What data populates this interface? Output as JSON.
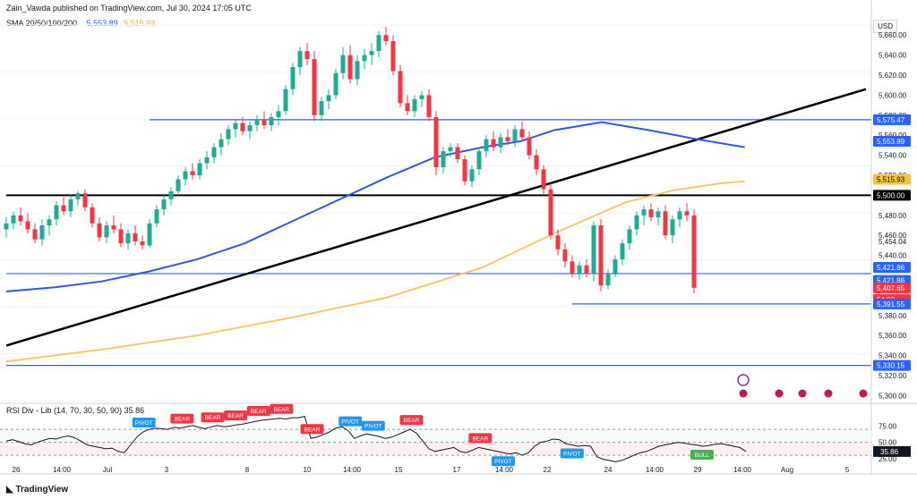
{
  "header": {
    "publisher": "Zain_Vawda published on TradingView.com, Jul 30, 2024 17:05 UTC",
    "sma_label": "SMA 20/50/100/200",
    "sma_value_1": "5,553.89",
    "sma_value_2": "5,515.93",
    "currency": "USD",
    "brand": "TradingView"
  },
  "price_axis": {
    "ticks": [
      "5,660.00",
      "5,640.00",
      "5,620.00",
      "5,600.00",
      "5,580.00",
      "5,560.00",
      "5,540.00",
      "5,520.00",
      "5,480.00",
      "5,460.00",
      "5,454.04",
      "5,440.00",
      "5,380.00",
      "5,360.00",
      "5,340.00",
      "5,320.00",
      "5,300.00"
    ],
    "tick_values": [
      5660,
      5640,
      5620,
      5600,
      5580,
      5560,
      5540,
      5520,
      5480,
      5460,
      5454.04,
      5440,
      5380,
      5360,
      5340,
      5320,
      5300
    ]
  },
  "price_badges": [
    {
      "label": "5,575.47",
      "value": 5575.47,
      "color": "#2962ff",
      "filled": true
    },
    {
      "label": "5,553.89",
      "value": 5553.89,
      "color": "#2962ff",
      "filled": true
    },
    {
      "label": "5,515.93",
      "value": 5515.93,
      "color": "#f5c542",
      "filled": true
    },
    {
      "label": "5,500.00",
      "value": 5500,
      "color": "#000000",
      "filled": true
    },
    {
      "label": "5,421.86",
      "value": 5428,
      "color": "#2962ff",
      "filled": true
    },
    {
      "label": "5,421.86",
      "value": 5415,
      "color": "#2962ff",
      "filled": true
    },
    {
      "label": "5,407.65",
      "value": 5407.65,
      "color": "#f23645",
      "filled": true
    },
    {
      "label": "54:03",
      "value": 5396,
      "color": "#f23645",
      "filled": true
    },
    {
      "label": "5,391.55",
      "value": 5391.55,
      "color": "#2962ff",
      "filled": true
    },
    {
      "label": "5,330.15",
      "value": 5330.15,
      "color": "#2962ff",
      "filled": true
    }
  ],
  "rsi": {
    "label": "RSI Div - Lib (14, 70, 30, 50, 90)",
    "current": "35.86",
    "axis_ticks": [
      "75.00",
      "50.00",
      "25.00"
    ],
    "axis_values": [
      75,
      50,
      25
    ],
    "upper": 70,
    "lower": 30,
    "signals": [
      {
        "text": "PIVOT",
        "kind": "pivot",
        "index": 18
      },
      {
        "text": "BEAR",
        "kind": "bear",
        "index": 23
      },
      {
        "text": "BEAR",
        "kind": "bear",
        "index": 27
      },
      {
        "text": "BEAR",
        "kind": "bear",
        "index": 30
      },
      {
        "text": "BEAR",
        "kind": "bear",
        "index": 33
      },
      {
        "text": "BEAR",
        "kind": "bear",
        "index": 36
      },
      {
        "text": "BEAR",
        "kind": "bear",
        "index": 40
      },
      {
        "text": "PIVOT",
        "kind": "pivot",
        "index": 45
      },
      {
        "text": "PIVOT",
        "kind": "pivot",
        "index": 48
      },
      {
        "text": "BEAR",
        "kind": "bear",
        "index": 53
      },
      {
        "text": "BEAR",
        "kind": "bear",
        "index": 62
      },
      {
        "text": "PIVOT",
        "kind": "pivot",
        "index": 65
      },
      {
        "text": "PIVOT",
        "kind": "pivot",
        "index": 74
      },
      {
        "text": "BULL",
        "kind": "bull",
        "index": 91
      }
    ]
  },
  "time_axis": [
    "26",
    "14:00",
    "Jul",
    "3",
    "8",
    "10",
    "14:00",
    "15",
    "17",
    "14:00",
    "22",
    "24",
    "14:00",
    "29",
    "14:00",
    "Aug",
    "5"
  ],
  "chart_data": {
    "type": "candlestick",
    "y_range": [
      5295,
      5670
    ],
    "bar_count": 103,
    "horizontal_levels": [
      {
        "value": 5575.47,
        "color": "#2962ff",
        "from_bar": 20
      },
      {
        "value": 5500,
        "color": "#000000",
        "from_bar": 0
      },
      {
        "value": 5421.86,
        "color": "#2962ff",
        "from_bar": 0
      },
      {
        "value": 5391.55,
        "color": "#2962ff",
        "from_bar": 79
      },
      {
        "value": 5330.15,
        "color": "#2962ff",
        "from_bar": 0
      }
    ],
    "trendline": {
      "from": {
        "bar": 0,
        "price": 5350
      },
      "to": {
        "bar": 120,
        "price": 5606
      }
    },
    "candles": [
      [
        5466,
        5478,
        5458,
        5472
      ],
      [
        5472,
        5484,
        5466,
        5480
      ],
      [
        5480,
        5488,
        5470,
        5474
      ],
      [
        5474,
        5482,
        5462,
        5466
      ],
      [
        5466,
        5472,
        5452,
        5456
      ],
      [
        5456,
        5476,
        5450,
        5470
      ],
      [
        5470,
        5480,
        5460,
        5476
      ],
      [
        5476,
        5494,
        5470,
        5490
      ],
      [
        5490,
        5498,
        5480,
        5484
      ],
      [
        5484,
        5500,
        5478,
        5496
      ],
      [
        5496,
        5504,
        5490,
        5502
      ],
      [
        5502,
        5506,
        5484,
        5488
      ],
      [
        5488,
        5492,
        5468,
        5472
      ],
      [
        5472,
        5478,
        5454,
        5458
      ],
      [
        5458,
        5474,
        5452,
        5470
      ],
      [
        5470,
        5480,
        5462,
        5466
      ],
      [
        5466,
        5472,
        5448,
        5452
      ],
      [
        5452,
        5466,
        5446,
        5462
      ],
      [
        5462,
        5470,
        5450,
        5454
      ],
      [
        5454,
        5460,
        5446,
        5450
      ],
      [
        5450,
        5476,
        5448,
        5472
      ],
      [
        5472,
        5490,
        5468,
        5486
      ],
      [
        5486,
        5500,
        5480,
        5496
      ],
      [
        5496,
        5508,
        5490,
        5504
      ],
      [
        5504,
        5520,
        5500,
        5516
      ],
      [
        5516,
        5528,
        5510,
        5524
      ],
      [
        5524,
        5532,
        5516,
        5520
      ],
      [
        5520,
        5536,
        5516,
        5532
      ],
      [
        5532,
        5544,
        5526,
        5538
      ],
      [
        5538,
        5552,
        5532,
        5548
      ],
      [
        5548,
        5562,
        5540,
        5556
      ],
      [
        5556,
        5570,
        5550,
        5566
      ],
      [
        5566,
        5576,
        5558,
        5572
      ],
      [
        5572,
        5578,
        5560,
        5564
      ],
      [
        5564,
        5574,
        5556,
        5570
      ],
      [
        5570,
        5580,
        5564,
        5576
      ],
      [
        5576,
        5584,
        5566,
        5570
      ],
      [
        5570,
        5582,
        5564,
        5578
      ],
      [
        5578,
        5590,
        5570,
        5584
      ],
      [
        5584,
        5610,
        5580,
        5606
      ],
      [
        5606,
        5632,
        5600,
        5628
      ],
      [
        5628,
        5648,
        5620,
        5644
      ],
      [
        5644,
        5652,
        5630,
        5636
      ],
      [
        5636,
        5644,
        5574,
        5580
      ],
      [
        5580,
        5598,
        5574,
        5594
      ],
      [
        5594,
        5606,
        5586,
        5600
      ],
      [
        5600,
        5626,
        5596,
        5622
      ],
      [
        5622,
        5648,
        5616,
        5640
      ],
      [
        5640,
        5650,
        5612,
        5616
      ],
      [
        5616,
        5640,
        5610,
        5634
      ],
      [
        5634,
        5646,
        5626,
        5640
      ],
      [
        5640,
        5652,
        5630,
        5644
      ],
      [
        5644,
        5664,
        5638,
        5660
      ],
      [
        5660,
        5668,
        5650,
        5654
      ],
      [
        5654,
        5660,
        5620,
        5624
      ],
      [
        5624,
        5630,
        5588,
        5592
      ],
      [
        5592,
        5600,
        5580,
        5584
      ],
      [
        5584,
        5600,
        5578,
        5596
      ],
      [
        5596,
        5604,
        5588,
        5600
      ],
      [
        5600,
        5606,
        5574,
        5578
      ],
      [
        5578,
        5584,
        5520,
        5528
      ],
      [
        5528,
        5548,
        5522,
        5544
      ],
      [
        5544,
        5552,
        5538,
        5548
      ],
      [
        5548,
        5552,
        5532,
        5536
      ],
      [
        5536,
        5540,
        5510,
        5514
      ],
      [
        5514,
        5530,
        5508,
        5526
      ],
      [
        5526,
        5548,
        5520,
        5544
      ],
      [
        5544,
        5560,
        5538,
        5556
      ],
      [
        5556,
        5564,
        5544,
        5548
      ],
      [
        5548,
        5562,
        5542,
        5558
      ],
      [
        5558,
        5566,
        5550,
        5554
      ],
      [
        5554,
        5570,
        5548,
        5566
      ],
      [
        5566,
        5574,
        5554,
        5558
      ],
      [
        5558,
        5564,
        5536,
        5540
      ],
      [
        5540,
        5546,
        5520,
        5526
      ],
      [
        5526,
        5530,
        5500,
        5506
      ],
      [
        5506,
        5512,
        5456,
        5460
      ],
      [
        5460,
        5466,
        5440,
        5446
      ],
      [
        5446,
        5452,
        5428,
        5434
      ],
      [
        5434,
        5440,
        5418,
        5422
      ],
      [
        5422,
        5434,
        5416,
        5430
      ],
      [
        5430,
        5436,
        5418,
        5422
      ],
      [
        5422,
        5474,
        5414,
        5470
      ],
      [
        5470,
        5476,
        5404,
        5410
      ],
      [
        5410,
        5426,
        5406,
        5422
      ],
      [
        5422,
        5440,
        5418,
        5436
      ],
      [
        5436,
        5456,
        5430,
        5452
      ],
      [
        5452,
        5470,
        5446,
        5466
      ],
      [
        5466,
        5484,
        5460,
        5480
      ],
      [
        5480,
        5490,
        5470,
        5486
      ],
      [
        5486,
        5492,
        5474,
        5478
      ],
      [
        5478,
        5488,
        5470,
        5484
      ],
      [
        5484,
        5490,
        5456,
        5460
      ],
      [
        5460,
        5480,
        5452,
        5476
      ],
      [
        5476,
        5488,
        5468,
        5484
      ],
      [
        5484,
        5492,
        5474,
        5480
      ],
      [
        5480,
        5486,
        5402,
        5407.65
      ]
    ],
    "sma_blue": [
      [
        0,
        5404
      ],
      [
        10,
        5408
      ],
      [
        20,
        5414
      ],
      [
        30,
        5424
      ],
      [
        40,
        5436
      ],
      [
        50,
        5452
      ],
      [
        60,
        5474
      ],
      [
        70,
        5496
      ],
      [
        80,
        5518
      ],
      [
        90,
        5538
      ],
      [
        100,
        5548
      ],
      [
        108,
        5554
      ],
      [
        115,
        5565
      ],
      [
        125,
        5573
      ],
      [
        135,
        5565
      ],
      [
        145,
        5556
      ],
      [
        155,
        5548
      ]
    ],
    "sma_yellow": [
      [
        0,
        5334
      ],
      [
        20,
        5346
      ],
      [
        40,
        5360
      ],
      [
        60,
        5378
      ],
      [
        80,
        5398
      ],
      [
        100,
        5428
      ],
      [
        115,
        5462
      ],
      [
        130,
        5493
      ],
      [
        140,
        5505
      ],
      [
        150,
        5512
      ],
      [
        155,
        5514
      ]
    ],
    "rsi_values": [
      52,
      54,
      51,
      48,
      46,
      50,
      53,
      56,
      55,
      58,
      60,
      57,
      52,
      46,
      44,
      42,
      40,
      41,
      36,
      34,
      46,
      58,
      66,
      70,
      72,
      71,
      70,
      73,
      72,
      74,
      76,
      73,
      71,
      74,
      76,
      74,
      75,
      77,
      78,
      80,
      82,
      84,
      85,
      86,
      87,
      86,
      88,
      88,
      90,
      56,
      58,
      62,
      66,
      72,
      74,
      68,
      56,
      60,
      63,
      61,
      59,
      56,
      58,
      62,
      66,
      70,
      64,
      52,
      40,
      36,
      38,
      40,
      42,
      36,
      34,
      38,
      42,
      40,
      38,
      36,
      34,
      32,
      34,
      30,
      34,
      44,
      50,
      52,
      55,
      54,
      48,
      46,
      44,
      45,
      44,
      28,
      24,
      22,
      20,
      22,
      26,
      30,
      34,
      36,
      40,
      44,
      46,
      48,
      50,
      49,
      47,
      46,
      44,
      45,
      47,
      48,
      46,
      44,
      42,
      36
    ]
  }
}
